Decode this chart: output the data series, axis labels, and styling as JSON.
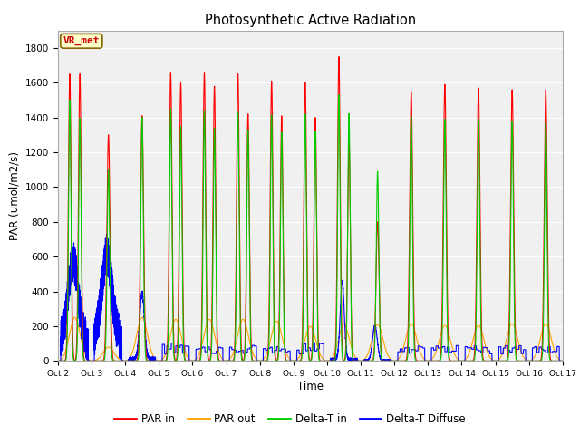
{
  "title": "Photosynthetic Active Radiation",
  "ylabel": "PAR (umol/m2/s)",
  "xlabel": "Time",
  "ylim": [
    0,
    1900
  ],
  "yticks": [
    0,
    200,
    400,
    600,
    800,
    1000,
    1200,
    1400,
    1600,
    1800
  ],
  "fig_bg": "#ffffff",
  "plot_bg": "#f0f0f0",
  "legend_labels": [
    "PAR in",
    "PAR out",
    "Delta-T in",
    "Delta-T Diffuse"
  ],
  "legend_colors": [
    "#ff0000",
    "#ffa500",
    "#00cc00",
    "#0000ff"
  ],
  "annotation_text": "VR_met",
  "annotation_color": "#cc0000",
  "annotation_bg": "#ffffcc",
  "days": 15,
  "x_tick_labels": [
    "Oct 2",
    "Oct 3",
    "Oct 4",
    "Oct 5",
    "Oct 6",
    "Oct 7",
    "Oct 8",
    "Oct 9",
    "Oct 10",
    "Oct 11",
    "Oct 12",
    "Oct 13",
    "Oct 14",
    "Oct 15",
    "Oct 16",
    "Oct 17"
  ],
  "par_in_peaks": [
    1650,
    1300,
    1410,
    1660,
    1660,
    1650,
    1610,
    1600,
    1750,
    800,
    1550,
    1590,
    1570,
    1560,
    1560
  ],
  "par_in_peaks2": [
    1650,
    0,
    0,
    1600,
    1580,
    1420,
    1410,
    1400,
    1260,
    0,
    0,
    0,
    0,
    0,
    0
  ],
  "par_out_peaks": [
    250,
    80,
    250,
    240,
    240,
    240,
    230,
    200,
    210,
    210,
    215,
    205,
    205,
    215,
    215
  ],
  "delta_in_peaks": [
    1500,
    1100,
    1400,
    1450,
    1440,
    1430,
    1415,
    1420,
    1530,
    1090,
    1410,
    1390,
    1390,
    1380,
    1370
  ],
  "delta_diff_peaks": [
    460,
    490,
    380,
    100,
    70,
    70,
    70,
    90,
    450,
    200,
    70,
    70,
    70,
    70,
    70
  ]
}
